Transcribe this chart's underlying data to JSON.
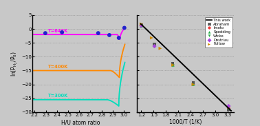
{
  "left": {
    "xlabel": "H/U atom ratio",
    "ylabel": "ln(P₂/P₀)",
    "xlim": [
      2.18,
      3.05
    ],
    "ylim": [
      -30,
      5
    ],
    "xticks": [
      2.2,
      2.3,
      2.4,
      2.5,
      2.6,
      2.7,
      2.8,
      2.9,
      3.0
    ],
    "yticks": [
      5,
      0,
      -5,
      -10,
      -15,
      -20,
      -25,
      -30
    ],
    "curves": [
      {
        "T": "T=642K",
        "color": "#ff00ff",
        "plateau": -2.0,
        "plateau_start": 2.18,
        "plateau_end": 2.94,
        "min_x": 2.965,
        "min_y": -3.8,
        "rise_x": 3.01,
        "rise_y": 0.5
      },
      {
        "T": "T=400K",
        "color": "#ff8800",
        "plateau": -15.0,
        "plateau_start": 2.18,
        "plateau_end": 2.88,
        "min_x": 2.96,
        "min_y": -17.5,
        "rise_x": 3.01,
        "rise_y": -5.5
      },
      {
        "T": "T=300K",
        "color": "#00ddbb",
        "plateau": -25.5,
        "plateau_start": 2.18,
        "plateau_end": 2.85,
        "min_x": 2.955,
        "min_y": -27.8,
        "rise_x": 3.01,
        "rise_y": -12.0
      }
    ],
    "scatter_x": [
      2.295,
      2.445,
      2.77,
      2.87,
      2.955,
      3.005
    ],
    "scatter_y": [
      -1.5,
      -1.2,
      -1.5,
      -2.2,
      -3.2,
      0.4
    ],
    "scatter_color": "#2222cc",
    "bg_color": "#c8c8c8"
  },
  "right": {
    "xlabel": "1000/T (1/K)",
    "xlim": [
      1.1,
      3.45
    ],
    "ylim": [
      -30,
      5
    ],
    "xticks": [
      1.2,
      1.5,
      1.8,
      2.1,
      2.4,
      2.7,
      3.0,
      3.3
    ],
    "yticks": [
      5,
      0,
      -5,
      -10,
      -15,
      -20,
      -25,
      -30
    ],
    "line_x": [
      1.19,
      3.38
    ],
    "line_y": [
      1.8,
      -29.5
    ],
    "bg_color": "#c8c8c8",
    "datasets": [
      {
        "label": "Abraham",
        "color": "#555555",
        "marker": "s",
        "ms": 5,
        "x": [
          1.2,
          1.52,
          1.96,
          2.46,
          3.32
        ],
        "y": [
          1.5,
          -5.5,
          -12.5,
          -19.5,
          -29.0
        ]
      },
      {
        "label": "Imoto",
        "color": "#ee3333",
        "marker": "o",
        "ms": 5,
        "x": [
          3.32
        ],
        "y": [
          -28.5
        ]
      },
      {
        "label": "Spedding",
        "color": "#22aa44",
        "marker": "^",
        "ms": 5,
        "x": [
          1.2,
          1.52,
          1.97,
          2.46,
          3.32
        ],
        "y": [
          1.0,
          -6.0,
          -13.0,
          -20.0,
          -28.5
        ]
      },
      {
        "label": "Wicke",
        "color": "#22aa44",
        "marker": "v",
        "ms": 5,
        "x": [
          1.52,
          1.97
        ],
        "y": [
          -6.3,
          -13.3
        ]
      },
      {
        "label": "Destriau",
        "color": "#aa44dd",
        "marker": "D",
        "ms": 5,
        "x": [
          1.2,
          1.52,
          3.32
        ],
        "y": [
          1.2,
          -6.2,
          -27.8
        ]
      },
      {
        "label": "Foltow",
        "color": "#cc8800",
        "marker": ">",
        "ms": 6,
        "x": [
          1.2,
          1.45,
          1.66,
          1.97,
          2.46
        ],
        "y": [
          1.8,
          -3.2,
          -7.0,
          -13.0,
          -20.0
        ]
      }
    ]
  },
  "fig_bg": "#c8c8c8"
}
